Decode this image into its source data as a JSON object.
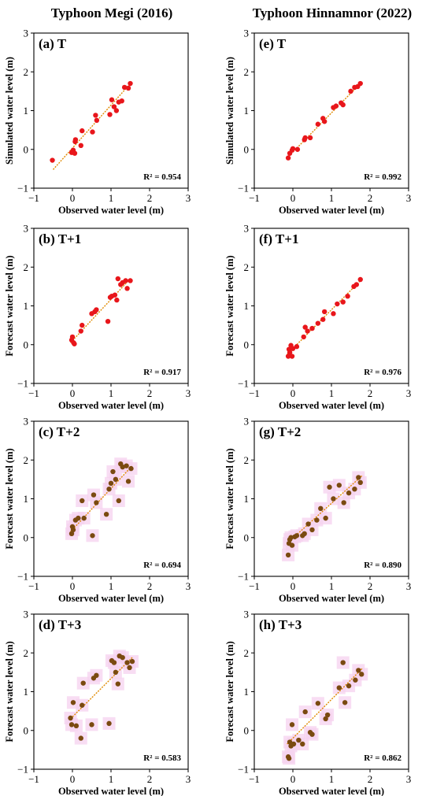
{
  "column_titles": [
    "Typhoon Megi (2016)",
    "Typhoon Hinnamnor (2022)"
  ],
  "colors": {
    "red_point": "#e8161b",
    "brown_point": "#7a4a10",
    "fit_line": "#e08a00",
    "halo": "#f5d2ef"
  },
  "chart_data": [
    {
      "type": "scatter",
      "label": "(a) T",
      "xlabel": "Observed water level (m)",
      "ylabel": "Simulated water level (m)",
      "xlim": [
        -1,
        3
      ],
      "ylim": [
        -1,
        3
      ],
      "xticks": [
        -1,
        0,
        1,
        2,
        3
      ],
      "yticks": [
        -1,
        0,
        1,
        2,
        3
      ],
      "r2_text": "R² = 0.954",
      "marker": "red",
      "halo": false,
      "fit": [
        [
          -0.5,
          -0.52
        ],
        [
          1.55,
          1.75
        ]
      ],
      "x": [
        -0.52,
        -0.02,
        0.02,
        0.06,
        0.07,
        0.08,
        0.22,
        0.25,
        0.52,
        0.63,
        0.6,
        0.97,
        1.02,
        1.08,
        1.14,
        1.2,
        1.28,
        1.35,
        1.45,
        1.5
      ],
      "y": [
        -0.28,
        -0.08,
        -0.02,
        -0.1,
        0.2,
        0.25,
        0.1,
        0.48,
        0.45,
        0.75,
        0.88,
        0.9,
        1.28,
        1.1,
        1.0,
        1.22,
        1.25,
        1.6,
        1.58,
        1.7
      ]
    },
    {
      "type": "scatter",
      "label": "(e) T",
      "xlabel": "Observed water level (m)",
      "ylabel": "Simulated water level (m)",
      "xlim": [
        -1,
        3
      ],
      "ylim": [
        -1,
        3
      ],
      "xticks": [
        -1,
        0,
        1,
        2,
        3
      ],
      "yticks": [
        -1,
        0,
        1,
        2,
        3
      ],
      "r2_text": "R² = 0.992",
      "marker": "red",
      "halo": false,
      "fit": [
        [
          -0.15,
          -0.22
        ],
        [
          1.8,
          1.75
        ]
      ],
      "x": [
        -0.12,
        -0.08,
        -0.02,
        0.0,
        0.12,
        0.3,
        0.32,
        0.45,
        0.65,
        0.78,
        0.82,
        1.05,
        1.12,
        1.25,
        1.3,
        1.5,
        1.6,
        1.68,
        1.75
      ],
      "y": [
        -0.22,
        -0.1,
        -0.02,
        0.02,
        0.0,
        0.25,
        0.3,
        0.3,
        0.65,
        0.8,
        0.72,
        1.08,
        1.12,
        1.2,
        1.15,
        1.5,
        1.6,
        1.62,
        1.7
      ]
    },
    {
      "type": "scatter",
      "label": "(b) T+1",
      "xlabel": "Observed water level (m)",
      "ylabel": "Forecast water level (m)",
      "xlim": [
        -1,
        3
      ],
      "ylim": [
        -1,
        3
      ],
      "xticks": [
        -1,
        0,
        1,
        2,
        3
      ],
      "yticks": [
        -1,
        0,
        1,
        2,
        3
      ],
      "r2_text": "R² = 0.917",
      "marker": "red",
      "halo": false,
      "fit": [
        [
          -0.05,
          0.05
        ],
        [
          1.5,
          1.7
        ]
      ],
      "x": [
        -0.02,
        0.0,
        0.03,
        0.05,
        0.22,
        0.25,
        0.5,
        0.58,
        0.62,
        0.92,
        0.98,
        1.02,
        1.1,
        1.15,
        1.18,
        1.25,
        1.3,
        1.38,
        1.42,
        1.5
      ],
      "y": [
        0.12,
        0.2,
        0.05,
        0.02,
        0.35,
        0.5,
        0.8,
        0.85,
        0.9,
        0.6,
        1.22,
        1.25,
        1.28,
        1.15,
        1.7,
        1.55,
        1.6,
        1.65,
        1.45,
        1.65
      ]
    },
    {
      "type": "scatter",
      "label": "(f) T+1",
      "xlabel": "Observed water level (m)",
      "ylabel": "Forecast water level (m)",
      "xlim": [
        -1,
        3
      ],
      "ylim": [
        -1,
        3
      ],
      "xticks": [
        -1,
        0,
        1,
        2,
        3
      ],
      "yticks": [
        -1,
        0,
        1,
        2,
        3
      ],
      "r2_text": "R² = 0.976",
      "marker": "red",
      "halo": false,
      "fit": [
        [
          -0.15,
          -0.25
        ],
        [
          1.8,
          1.7
        ]
      ],
      "x": [
        -0.12,
        -0.1,
        -0.08,
        -0.05,
        -0.02,
        0.0,
        0.1,
        0.28,
        0.32,
        0.38,
        0.5,
        0.65,
        0.78,
        0.82,
        1.05,
        1.15,
        1.3,
        1.42,
        1.58,
        1.65,
        1.75
      ],
      "y": [
        -0.3,
        -0.12,
        -0.2,
        -0.02,
        -0.3,
        -0.1,
        -0.05,
        0.2,
        0.45,
        0.35,
        0.42,
        0.55,
        0.65,
        0.85,
        0.8,
        1.05,
        1.1,
        1.25,
        1.5,
        1.55,
        1.68
      ]
    },
    {
      "type": "scatter",
      "label": "(c) T+2",
      "xlabel": "Observed water level (m)",
      "ylabel": "Forecast water level (m)",
      "xlim": [
        -1,
        3
      ],
      "ylim": [
        -1,
        3
      ],
      "xticks": [
        -1,
        0,
        1,
        2,
        3
      ],
      "yticks": [
        -1,
        0,
        1,
        2,
        3
      ],
      "r2_text": "R² = 0.694",
      "marker": "brown",
      "halo": true,
      "fit": [
        [
          -0.05,
          0.15
        ],
        [
          1.55,
          1.85
        ]
      ],
      "x": [
        -0.02,
        0.0,
        0.02,
        0.08,
        0.15,
        0.25,
        0.3,
        0.52,
        0.55,
        0.62,
        0.88,
        0.95,
        1.0,
        1.05,
        1.12,
        1.2,
        1.25,
        1.3,
        1.4,
        1.45,
        1.52
      ],
      "y": [
        0.1,
        0.28,
        0.2,
        0.45,
        0.5,
        0.95,
        0.5,
        0.05,
        1.1,
        0.9,
        0.6,
        1.25,
        1.4,
        1.7,
        1.5,
        0.95,
        1.9,
        1.82,
        1.85,
        1.45,
        1.78
      ]
    },
    {
      "type": "scatter",
      "label": "(g) T+2",
      "xlabel": "Observed water level (m)",
      "ylabel": "Forecast water level (m)",
      "xlim": [
        -1,
        3
      ],
      "ylim": [
        -1,
        3
      ],
      "xticks": [
        -1,
        0,
        1,
        2,
        3
      ],
      "yticks": [
        -1,
        0,
        1,
        2,
        3
      ],
      "r2_text": "R² = 0.890",
      "marker": "brown",
      "halo": true,
      "fit": [
        [
          -0.15,
          -0.15
        ],
        [
          1.8,
          1.6
        ]
      ],
      "x": [
        -0.12,
        -0.1,
        -0.08,
        -0.05,
        -0.02,
        0.05,
        0.1,
        0.25,
        0.3,
        0.4,
        0.5,
        0.62,
        0.72,
        0.85,
        0.95,
        1.05,
        1.2,
        1.32,
        1.45,
        1.6,
        1.7,
        1.75
      ],
      "y": [
        -0.45,
        -0.15,
        -0.05,
        0.0,
        -0.2,
        0.02,
        0.05,
        0.05,
        0.1,
        0.35,
        0.2,
        0.45,
        0.75,
        0.5,
        1.3,
        1.0,
        1.35,
        0.9,
        1.15,
        1.25,
        1.55,
        1.42
      ]
    },
    {
      "type": "scatter",
      "label": "(d) T+3",
      "xlabel": "Observed water level (m)",
      "ylabel": "Forecast water level (m)",
      "xlim": [
        -1,
        3
      ],
      "ylim": [
        -1,
        3
      ],
      "xticks": [
        -1,
        0,
        1,
        2,
        3
      ],
      "yticks": [
        -1,
        0,
        1,
        2,
        3
      ],
      "r2_text": "R² = 0.583",
      "marker": "brown",
      "halo": true,
      "fit": [
        [
          -0.05,
          0.3
        ],
        [
          1.55,
          1.88
        ]
      ],
      "x": [
        -0.05,
        -0.02,
        0.02,
        0.1,
        0.22,
        0.25,
        0.28,
        0.5,
        0.55,
        0.62,
        0.95,
        1.02,
        1.08,
        1.12,
        1.18,
        1.22,
        1.3,
        1.42,
        1.48,
        1.55
      ],
      "y": [
        0.32,
        0.15,
        0.72,
        0.12,
        -0.2,
        0.65,
        1.22,
        0.15,
        1.35,
        1.42,
        0.18,
        1.8,
        1.75,
        1.5,
        1.2,
        1.92,
        1.88,
        1.75,
        1.62,
        1.78
      ]
    },
    {
      "type": "scatter",
      "label": "(h) T+3",
      "xlabel": "Observed water level (m)",
      "ylabel": "Forecast water level (m)",
      "xlim": [
        -1,
        3
      ],
      "ylim": [
        -1,
        3
      ],
      "xticks": [
        -1,
        0,
        1,
        2,
        3
      ],
      "yticks": [
        -1,
        0,
        1,
        2,
        3
      ],
      "r2_text": "R² = 0.862",
      "marker": "brown",
      "halo": true,
      "fit": [
        [
          -0.15,
          -0.35
        ],
        [
          1.8,
          1.6
        ]
      ],
      "x": [
        -0.12,
        -0.1,
        -0.08,
        -0.05,
        -0.02,
        0.02,
        0.15,
        0.25,
        0.32,
        0.45,
        0.5,
        0.65,
        0.85,
        0.9,
        1.2,
        1.3,
        1.35,
        1.45,
        1.62,
        1.7,
        1.78
      ],
      "y": [
        -0.68,
        -0.72,
        -0.3,
        -0.4,
        0.15,
        -0.35,
        -0.25,
        -0.35,
        0.48,
        -0.05,
        -0.1,
        0.7,
        0.3,
        0.4,
        1.1,
        1.75,
        0.72,
        1.15,
        1.3,
        1.55,
        1.45
      ]
    }
  ]
}
